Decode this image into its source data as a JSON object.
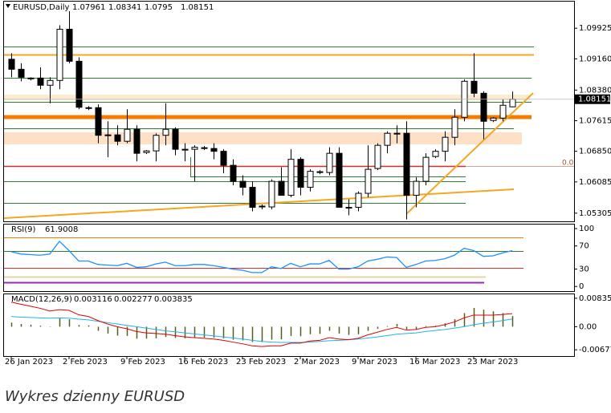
{
  "chart_data": [
    {
      "type": "candlestick",
      "symbol": "EURUSD,Daily",
      "categories": [
        "26 Jan 2023",
        null,
        null,
        null,
        null,
        null,
        "2 Feb 2023",
        null,
        null,
        null,
        null,
        null,
        "9 Feb 2023",
        null,
        null,
        null,
        null,
        null,
        "16 Feb 2023",
        null,
        null,
        null,
        null,
        null,
        "23 Feb 2023",
        null,
        null,
        null,
        null,
        null,
        "2 Mar 2023",
        null,
        null,
        null,
        null,
        null,
        "9 Mar 2023",
        null,
        null,
        null,
        null,
        null,
        "16 Mar 2023",
        null,
        null,
        null,
        null,
        null,
        "23 Mar 2023",
        null,
        null,
        null,
        null
      ],
      "open": [
        1.0915,
        1.089,
        1.0866,
        1.0868,
        1.085,
        1.0862,
        1.099,
        1.091,
        1.0792,
        1.0794,
        1.0725,
        1.0726,
        1.071,
        1.074,
        1.0682,
        1.0686,
        1.0725,
        1.074,
        1.069,
        1.069,
        1.0694,
        1.0692,
        1.0685,
        1.065,
        1.061,
        1.0595,
        1.0548,
        1.0546,
        1.061,
        1.0575,
        1.0665,
        1.0595,
        1.0634,
        1.0632,
        1.068,
        1.0545,
        1.0545,
        1.058,
        1.0642,
        1.07,
        1.073,
        1.073,
        1.0575,
        1.061,
        1.0672,
        1.0685,
        1.072,
        1.077,
        1.086,
        1.083,
        1.0762,
        1.0768,
        1.07961
      ],
      "high": [
        1.093,
        1.0905,
        1.087,
        1.0895,
        1.087,
        1.1,
        1.1035,
        1.092,
        1.0798,
        1.0802,
        1.076,
        1.075,
        1.079,
        1.075,
        1.0688,
        1.073,
        1.0805,
        1.0745,
        1.0705,
        1.07,
        1.0698,
        1.0705,
        1.069,
        1.0665,
        1.0625,
        1.061,
        1.0552,
        1.0615,
        1.0645,
        1.069,
        1.067,
        1.064,
        1.0638,
        1.0695,
        1.0695,
        1.0565,
        1.0585,
        1.07,
        1.0705,
        1.0735,
        1.075,
        1.076,
        1.062,
        1.068,
        1.069,
        1.0735,
        1.079,
        1.0865,
        1.093,
        1.0835,
        1.077,
        1.0815,
        1.08341
      ],
      "low": [
        1.087,
        1.086,
        1.0862,
        1.084,
        1.0805,
        1.084,
        1.0905,
        1.079,
        1.0788,
        1.0705,
        1.067,
        1.07,
        1.0705,
        1.066,
        1.0678,
        1.066,
        1.07,
        1.0675,
        1.066,
        1.061,
        1.0688,
        1.0665,
        1.063,
        1.06,
        1.0575,
        1.0535,
        1.054,
        1.054,
        1.0575,
        1.057,
        1.0575,
        1.0585,
        1.0628,
        1.0625,
        1.0545,
        1.0525,
        1.0535,
        1.057,
        1.0638,
        1.068,
        1.0705,
        1.0515,
        1.0545,
        1.06,
        1.0668,
        1.066,
        1.07,
        1.076,
        1.082,
        1.0715,
        1.0758,
        1.076,
        1.0795
      ],
      "close": [
        1.089,
        1.087,
        1.0868,
        1.085,
        1.0862,
        1.099,
        1.091,
        1.0795,
        1.0794,
        1.0725,
        1.0726,
        1.071,
        1.074,
        1.068,
        1.0686,
        1.0725,
        1.074,
        1.069,
        1.069,
        1.0695,
        1.0692,
        1.0685,
        1.065,
        1.061,
        1.0595,
        1.0545,
        1.0546,
        1.061,
        1.0575,
        1.0665,
        1.0595,
        1.0635,
        1.0632,
        1.068,
        1.0545,
        1.0545,
        1.058,
        1.064,
        1.07,
        1.073,
        1.073,
        1.0575,
        1.061,
        1.067,
        1.0685,
        1.072,
        1.077,
        1.086,
        1.083,
        1.076,
        1.0768,
        1.08,
        1.08151
      ],
      "ylim": [
        1.051,
        1.1059
      ],
      "yticks": [
        1.09925,
        {
          "value": 1.0916,
          "label": "1.09160"
        },
        {
          "value": 1.0838,
          "label": "1.08380"
        },
        1.07615,
        {
          "value": 1.0685,
          "label": "1.06850"
        },
        1.06085,
        1.05305
      ],
      "fib_label": "0.0"
    },
    {
      "type": "line",
      "label": "RSI(9)",
      "color": "#1e90ff",
      "values": [
        60,
        56,
        55,
        54,
        56,
        78,
        62,
        44,
        44,
        38,
        37,
        36,
        40,
        33,
        34,
        39,
        42,
        36,
        36,
        38,
        38,
        36,
        33,
        30,
        28,
        24,
        24,
        34,
        31,
        40,
        34,
        39,
        39,
        45,
        30,
        30,
        34,
        44,
        47,
        51,
        50,
        33,
        38,
        44,
        45,
        48,
        54,
        66,
        62,
        52,
        53,
        58,
        61.9008
      ],
      "ylim": [
        -8,
        107
      ],
      "yticks": [
        100,
        70,
        30,
        0
      ]
    },
    {
      "type": "macd",
      "label": "MACD(12,26,9)",
      "series": [
        {
          "color": "#5c5c1f",
          "values": [
            0.0012,
            0.0008,
            0.0006,
            0.0003,
            0.0001,
            0.0025,
            0.0022,
            0.0005,
            0.0004,
            -0.0012,
            -0.002,
            -0.0026,
            -0.0027,
            -0.0035,
            -0.0035,
            -0.0034,
            -0.003,
            -0.0033,
            -0.0034,
            -0.0033,
            -0.0032,
            -0.0032,
            -0.0034,
            -0.0038,
            -0.004,
            -0.0045,
            -0.0045,
            -0.0038,
            -0.0037,
            -0.0027,
            -0.0028,
            -0.0022,
            -0.0021,
            -0.0012,
            -0.002,
            -0.0024,
            -0.0022,
            -0.0012,
            -0.0006,
            0.0002,
            0.0008,
            -0.0008,
            -0.0007,
            0.0002,
            0.0003,
            0.001,
            0.0022,
            0.004,
            0.0055,
            0.005,
            0.0045,
            0.004,
            0.003116
          ]
        },
        {
          "color": "#1eb4e6",
          "values": [
            0.003,
            0.0028,
            0.0027,
            0.0026,
            0.0025,
            0.0026,
            0.0025,
            0.0022,
            0.002,
            0.0016,
            0.0012,
            0.0008,
            0.0004,
            0,
            -0.0004,
            -0.0008,
            -0.0012,
            -0.0015,
            -0.0018,
            -0.0021,
            -0.0024,
            -0.0027,
            -0.003,
            -0.0033,
            -0.0036,
            -0.004,
            -0.0043,
            -0.0045,
            -0.0046,
            -0.0046,
            -0.0046,
            -0.0045,
            -0.0043,
            -0.0041,
            -0.004,
            -0.0038,
            -0.0036,
            -0.0033,
            -0.003,
            -0.0026,
            -0.0022,
            -0.002,
            -0.0018,
            -0.0014,
            -0.0011,
            -0.0008,
            -0.0004,
            0,
            0.0006,
            0.001,
            0.0014,
            0.0018,
            0.002277
          ]
        },
        {
          "color": "#e00000",
          "values": [
            0.0072,
            0.0066,
            0.006,
            0.0054,
            0.0046,
            0.005,
            0.0048,
            0.0035,
            0.003,
            0.0018,
            0.0008,
            0,
            -0.0006,
            -0.0014,
            -0.0018,
            -0.002,
            -0.0022,
            -0.0026,
            -0.003,
            -0.0032,
            -0.0034,
            -0.0036,
            -0.004,
            -0.0045,
            -0.005,
            -0.0056,
            -0.0058,
            -0.0056,
            -0.0056,
            -0.0048,
            -0.0048,
            -0.0042,
            -0.004,
            -0.0032,
            -0.0036,
            -0.0038,
            -0.0034,
            -0.0024,
            -0.0016,
            -0.0008,
            -0.0002,
            -0.001,
            -0.0008,
            -0.0002,
            0,
            0.0006,
            0.0014,
            0.0026,
            0.0034,
            0.0034,
            0.0034,
            0.0036,
            0.003835
          ]
        }
      ],
      "ylim": [
        -0.0086,
        0.0095
      ],
      "yticks": [
        0.008351,
        {
          "value": 0,
          "label": "0.00"
        },
        -0.00677
      ]
    }
  ],
  "caption": "Wykres dzienny EURUSD"
}
